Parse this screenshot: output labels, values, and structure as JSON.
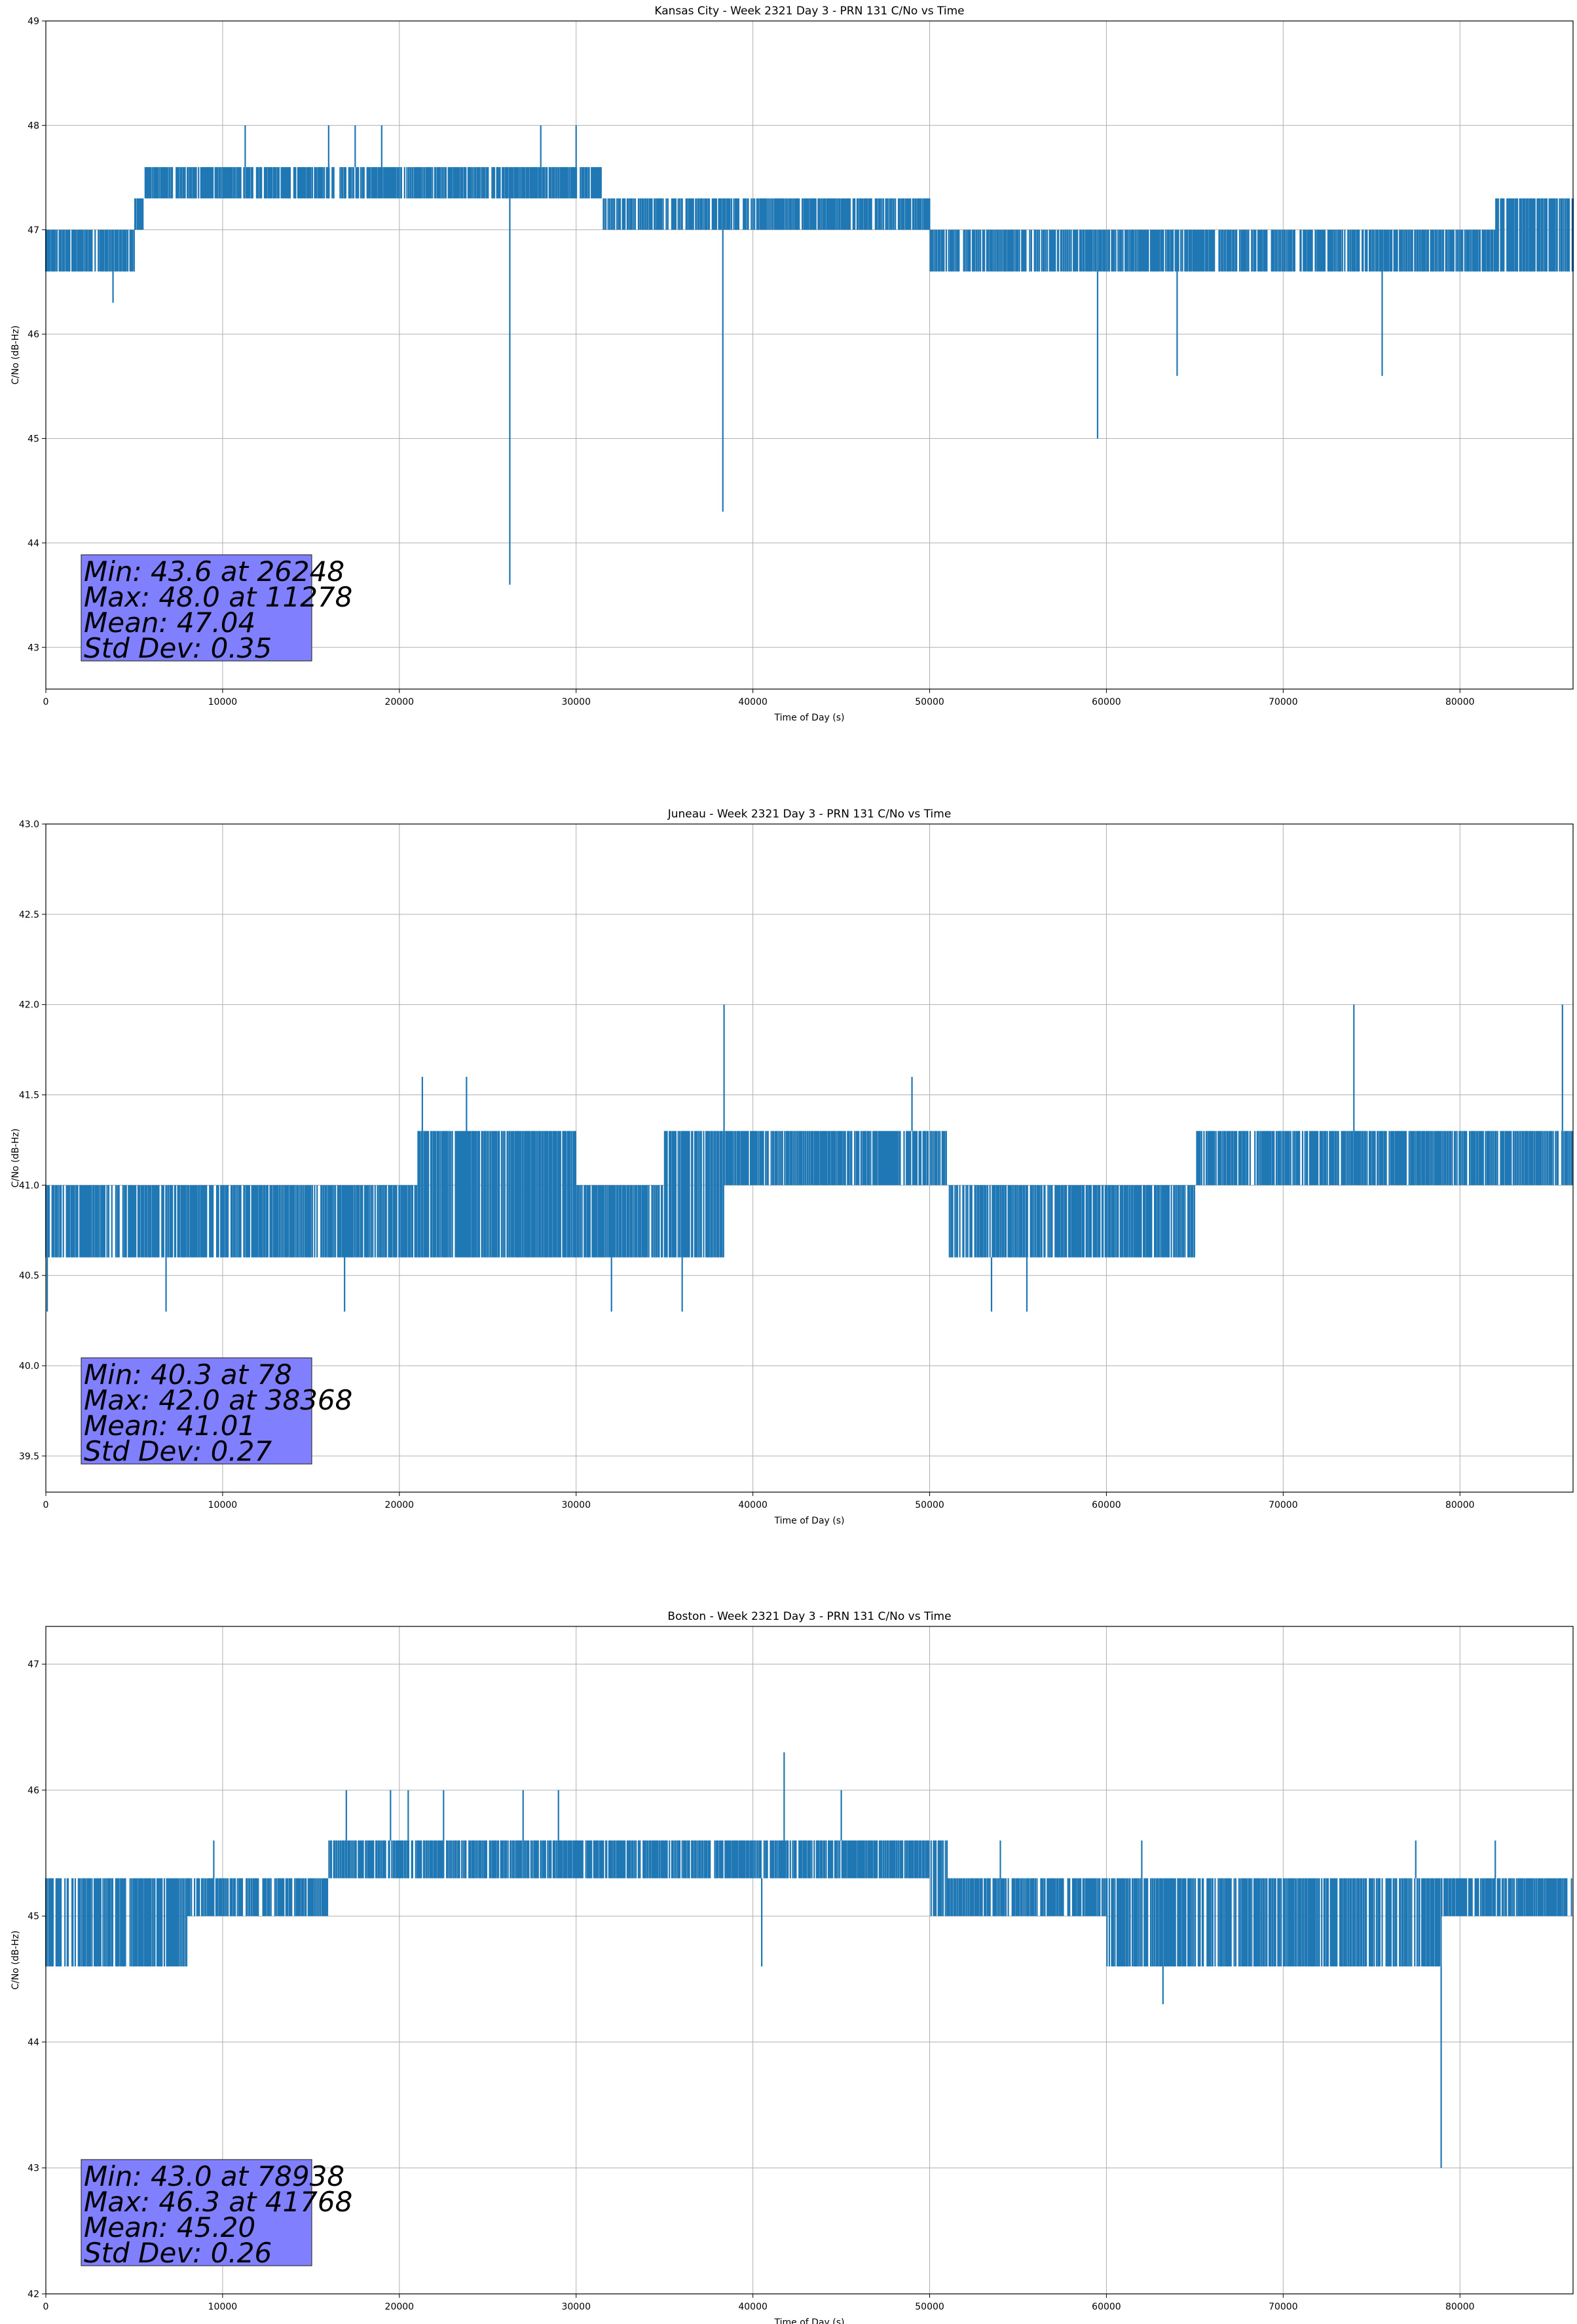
{
  "chart_data": [
    {
      "type": "line",
      "title": "Kansas City - Week 2321 Day 3 - PRN 131 C/No vs Time",
      "xlabel": "Time of Day (s)",
      "ylabel": "C/No (dB-Hz)",
      "xlim": [
        0,
        86400
      ],
      "ylim": [
        42.6,
        49.0
      ],
      "xticks": [
        0,
        10000,
        20000,
        30000,
        40000,
        50000,
        60000,
        70000,
        80000
      ],
      "yticks": [
        43,
        44,
        45,
        46,
        47,
        48,
        49
      ],
      "ytick_labels": [
        "43",
        "44",
        "45",
        "46",
        "47",
        "48",
        "49"
      ],
      "grid": true,
      "color": "#1f77b4",
      "stats": [
        "Min: 43.6 at 26248",
        "Max: 48.0 at 11278",
        "Mean: 47.04",
        "Std Dev: 0.35"
      ],
      "series": [
        {
          "x": [
            0,
            2000,
            3500,
            3800,
            5000,
            5600,
            8000,
            11278,
            13000,
            16000,
            19000,
            22000,
            24000,
            26000,
            26248,
            26500,
            28000,
            30000,
            31500,
            32000,
            36000,
            38300,
            40000,
            45000,
            50000,
            51000,
            55000,
            59500,
            60000,
            64000,
            70000,
            75600,
            80000,
            82000,
            86400
          ],
          "low": [
            46.6,
            46.6,
            46.6,
            46.6,
            47.0,
            47.3,
            47.3,
            47.3,
            47.3,
            47.3,
            47.3,
            47.3,
            47.3,
            47.3,
            47.3,
            47.3,
            47.3,
            47.3,
            47.0,
            47.0,
            47.0,
            47.0,
            47.0,
            47.0,
            46.6,
            46.6,
            46.6,
            46.6,
            46.6,
            46.6,
            46.6,
            46.6,
            46.6,
            46.6,
            46.6
          ],
          "high": [
            47.0,
            47.0,
            47.0,
            47.0,
            47.3,
            47.6,
            47.6,
            47.6,
            47.6,
            47.6,
            47.6,
            47.6,
            47.6,
            47.6,
            47.6,
            47.6,
            47.6,
            47.6,
            47.3,
            47.3,
            47.3,
            47.3,
            47.3,
            47.3,
            47.0,
            47.0,
            47.0,
            47.0,
            47.0,
            47.0,
            47.0,
            47.0,
            47.0,
            47.3,
            47.3
          ],
          "spikes": [
            [
              3800,
              46.3
            ],
            [
              11278,
              48.0
            ],
            [
              16000,
              48.0
            ],
            [
              17500,
              48.0
            ],
            [
              19000,
              48.0
            ],
            [
              26248,
              43.6
            ],
            [
              28000,
              48.0
            ],
            [
              30000,
              48.0
            ],
            [
              38300,
              44.3
            ],
            [
              59500,
              45.0
            ],
            [
              64000,
              45.6
            ],
            [
              75600,
              45.6
            ]
          ]
        }
      ]
    },
    {
      "type": "line",
      "title": "Juneau - Week 2321 Day 3 - PRN 131 C/No vs Time",
      "xlabel": "Time of Day (s)",
      "ylabel": "C/No (dB-Hz)",
      "xlim": [
        0,
        86400
      ],
      "ylim": [
        39.3,
        43.0
      ],
      "xticks": [
        0,
        10000,
        20000,
        30000,
        40000,
        50000,
        60000,
        70000,
        80000
      ],
      "yticks": [
        39.5,
        40.0,
        40.5,
        41.0,
        41.5,
        42.0,
        42.5,
        43.0
      ],
      "ytick_labels": [
        "39.5",
        "40.0",
        "40.5",
        "41.0",
        "41.5",
        "42.0",
        "42.5",
        "43.0"
      ],
      "grid": true,
      "color": "#1f77b4",
      "stats": [
        "Min: 40.3 at 78",
        "Max: 42.0 at 38368",
        "Mean: 41.01",
        "Std Dev: 0.27"
      ],
      "series": [
        {
          "x": [
            0,
            78,
            5000,
            10000,
            15000,
            20000,
            21000,
            25000,
            30000,
            35000,
            38368,
            40000,
            45000,
            50000,
            51000,
            53000,
            55000,
            57000,
            60000,
            65000,
            70000,
            74000,
            80000,
            84000,
            86400
          ],
          "low": [
            40.6,
            40.6,
            40.6,
            40.6,
            40.6,
            40.6,
            40.6,
            40.6,
            40.6,
            40.6,
            41.0,
            41.0,
            41.0,
            41.0,
            40.6,
            40.6,
            40.6,
            40.6,
            40.6,
            41.0,
            41.0,
            41.0,
            41.0,
            41.0,
            41.3
          ],
          "high": [
            41.0,
            41.0,
            41.0,
            41.0,
            41.0,
            41.0,
            41.3,
            41.3,
            41.0,
            41.3,
            41.3,
            41.3,
            41.3,
            41.3,
            41.0,
            41.0,
            41.0,
            41.0,
            41.0,
            41.3,
            41.3,
            41.3,
            41.3,
            41.3,
            41.6
          ],
          "spikes": [
            [
              78,
              40.3
            ],
            [
              6800,
              40.3
            ],
            [
              16900,
              40.3
            ],
            [
              21300,
              41.6
            ],
            [
              23800,
              41.6
            ],
            [
              32000,
              40.3
            ],
            [
              36000,
              40.3
            ],
            [
              38368,
              42.0
            ],
            [
              49000,
              41.6
            ],
            [
              53500,
              40.3
            ],
            [
              55500,
              40.3
            ],
            [
              74000,
              42.0
            ],
            [
              85800,
              42.0
            ]
          ]
        }
      ]
    },
    {
      "type": "line",
      "title": "Boston - Week 2321 Day 3 - PRN 131 C/No vs Time",
      "xlabel": "Time of Day (s)",
      "ylabel": "C/No (dB-Hz)",
      "xlim": [
        0,
        86400
      ],
      "ylim": [
        42.0,
        47.3
      ],
      "xticks": [
        0,
        10000,
        20000,
        30000,
        40000,
        50000,
        60000,
        70000,
        80000
      ],
      "yticks": [
        42,
        43,
        44,
        45,
        46,
        47
      ],
      "ytick_labels": [
        "42",
        "43",
        "44",
        "45",
        "46",
        "47"
      ],
      "grid": true,
      "color": "#1f77b4",
      "stats": [
        "Min: 43.0 at 78938",
        "Max: 46.3 at 41768",
        "Mean: 45.20",
        "Std Dev: 0.26"
      ],
      "series": [
        {
          "x": [
            0,
            5000,
            7500,
            8000,
            13000,
            16000,
            20000,
            25000,
            30000,
            35000,
            40000,
            41768,
            45000,
            50000,
            51000,
            55000,
            60000,
            63000,
            65000,
            70000,
            75000,
            78938,
            80000,
            85000,
            86400
          ],
          "low": [
            44.6,
            44.6,
            44.6,
            45.0,
            45.0,
            45.3,
            45.3,
            45.3,
            45.3,
            45.3,
            45.3,
            45.3,
            45.3,
            45.0,
            45.0,
            45.0,
            44.6,
            44.6,
            44.6,
            44.6,
            44.6,
            45.0,
            45.0,
            45.0,
            44.6
          ],
          "high": [
            45.3,
            45.3,
            45.3,
            45.3,
            45.3,
            45.6,
            45.6,
            45.6,
            45.6,
            45.6,
            45.6,
            45.6,
            45.6,
            45.6,
            45.3,
            45.3,
            45.3,
            45.3,
            45.3,
            45.3,
            45.3,
            45.3,
            45.3,
            45.3,
            45.3
          ],
          "spikes": [
            [
              9500,
              45.6
            ],
            [
              17000,
              46.0
            ],
            [
              19500,
              46.0
            ],
            [
              20500,
              46.0
            ],
            [
              22500,
              46.0
            ],
            [
              27000,
              46.0
            ],
            [
              29000,
              46.0
            ],
            [
              40500,
              44.6
            ],
            [
              41768,
              46.3
            ],
            [
              45000,
              46.0
            ],
            [
              54000,
              45.6
            ],
            [
              62000,
              45.6
            ],
            [
              63200,
              44.3
            ],
            [
              77500,
              45.6
            ],
            [
              78938,
              43.0
            ],
            [
              82000,
              45.6
            ]
          ]
        }
      ]
    }
  ]
}
